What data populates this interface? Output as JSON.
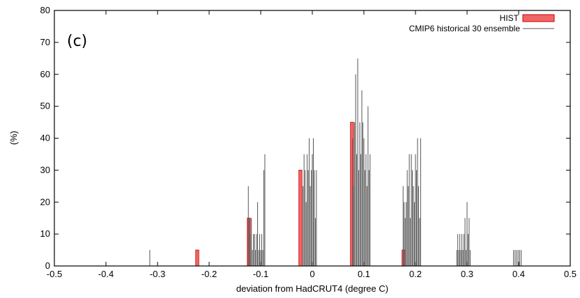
{
  "chart_data": {
    "type": "bar",
    "title": "",
    "panel_label": "(c)",
    "xlabel": "deviation from HadCRUT4 (degree C)",
    "ylabel": "(%)",
    "xlim": [
      -0.5,
      0.5
    ],
    "ylim": [
      0,
      80
    ],
    "xticks": [
      "-0.5",
      "-0.4",
      "-0.3",
      "-0.2",
      "-0.1",
      "0",
      "0.1",
      "0.2",
      "0.3",
      "0.4",
      "0.5"
    ],
    "yticks": [
      "0",
      "10",
      "20",
      "30",
      "40",
      "50",
      "60",
      "70",
      "80"
    ],
    "grid": false,
    "legend_position": "top-right",
    "series": [
      {
        "name": "HIST",
        "style": "bar",
        "color": "#ee6666",
        "x": [
          -0.22,
          -0.12,
          -0.02,
          0.08,
          0.18
        ],
        "values": [
          5,
          15,
          30,
          45,
          5
        ]
      },
      {
        "name": "CMIP6 historical 30 ensemble",
        "style": "line",
        "color": "#555555",
        "x": [
          -0.315,
          -0.124,
          -0.122,
          -0.12,
          -0.118,
          -0.116,
          -0.114,
          -0.112,
          -0.11,
          -0.108,
          -0.106,
          -0.104,
          -0.102,
          -0.1,
          -0.098,
          -0.096,
          -0.094,
          -0.092,
          -0.018,
          -0.016,
          -0.014,
          -0.012,
          -0.01,
          -0.008,
          -0.006,
          -0.004,
          -0.002,
          0.0,
          0.002,
          0.004,
          0.006,
          0.008,
          0.078,
          0.08,
          0.082,
          0.084,
          0.086,
          0.088,
          0.09,
          0.092,
          0.094,
          0.096,
          0.098,
          0.1,
          0.102,
          0.104,
          0.106,
          0.108,
          0.11,
          0.112,
          0.176,
          0.178,
          0.18,
          0.182,
          0.184,
          0.186,
          0.188,
          0.19,
          0.192,
          0.194,
          0.196,
          0.198,
          0.2,
          0.202,
          0.204,
          0.206,
          0.208,
          0.21,
          0.28,
          0.282,
          0.284,
          0.286,
          0.288,
          0.29,
          0.292,
          0.294,
          0.296,
          0.298,
          0.3,
          0.302,
          0.304,
          0.306,
          0.39,
          0.393,
          0.396,
          0.399,
          0.402,
          0.405
        ],
        "values": [
          5,
          25,
          15,
          10,
          15,
          5,
          10,
          10,
          5,
          10,
          20,
          5,
          10,
          5,
          10,
          5,
          30,
          35,
          25,
          35,
          30,
          20,
          35,
          30,
          40,
          25,
          30,
          35,
          40,
          30,
          15,
          30,
          40,
          25,
          45,
          60,
          35,
          65,
          30,
          45,
          35,
          55,
          45,
          40,
          30,
          35,
          25,
          50,
          30,
          35,
          25,
          20,
          15,
          20,
          30,
          25,
          35,
          15,
          35,
          30,
          25,
          20,
          35,
          30,
          40,
          25,
          15,
          40,
          5,
          10,
          5,
          10,
          5,
          10,
          5,
          10,
          15,
          5,
          20,
          10,
          15,
          5,
          5,
          5,
          5,
          5,
          5,
          5
        ]
      }
    ]
  }
}
